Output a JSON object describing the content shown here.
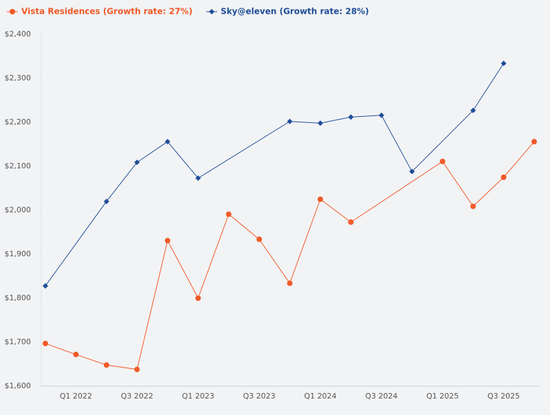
{
  "chart_data": {
    "type": "line",
    "categories": [
      null,
      "Q1 2022",
      null,
      "Q3 2022",
      null,
      "Q1 2023",
      null,
      "Q3 2023",
      null,
      "Q1 2024",
      null,
      "Q3 2024",
      null,
      "Q1 2025",
      null,
      "Q3 2025",
      null
    ],
    "series": [
      {
        "name": "Vista Residences (Growth rate: 27%)",
        "color": "#f05a28",
        "marker": "circle",
        "values": [
          1697,
          1672,
          1648,
          1638,
          1931,
          1800,
          1991,
          1934,
          1834,
          2025,
          1973,
          null,
          null,
          2111,
          2009,
          2075,
          2156
        ]
      },
      {
        "name": "Sky@eleven (Growth rate: 28%)",
        "color": "#1f4e99",
        "marker": "diamond",
        "values": [
          1828,
          null,
          2020,
          2109,
          2156,
          2073,
          null,
          null,
          2202,
          2198,
          2212,
          2216,
          2088,
          null,
          2227,
          2334,
          null
        ]
      }
    ],
    "span_gaps": true,
    "ylim": [
      1600,
      2400
    ],
    "yticks": [
      {
        "value": 1600,
        "label": "$1,600"
      },
      {
        "value": 1700,
        "label": "$1,700"
      },
      {
        "value": 1800,
        "label": "$1,800"
      },
      {
        "value": 1900,
        "label": "$1,900"
      },
      {
        "value": 2000,
        "label": "$2,000"
      },
      {
        "value": 2100,
        "label": "$2,100"
      },
      {
        "value": 2200,
        "label": "$2,200"
      },
      {
        "value": 2300,
        "label": "$2,300"
      },
      {
        "value": 2400,
        "label": "$2,400"
      }
    ],
    "grid": false,
    "legend": "top-left"
  }
}
